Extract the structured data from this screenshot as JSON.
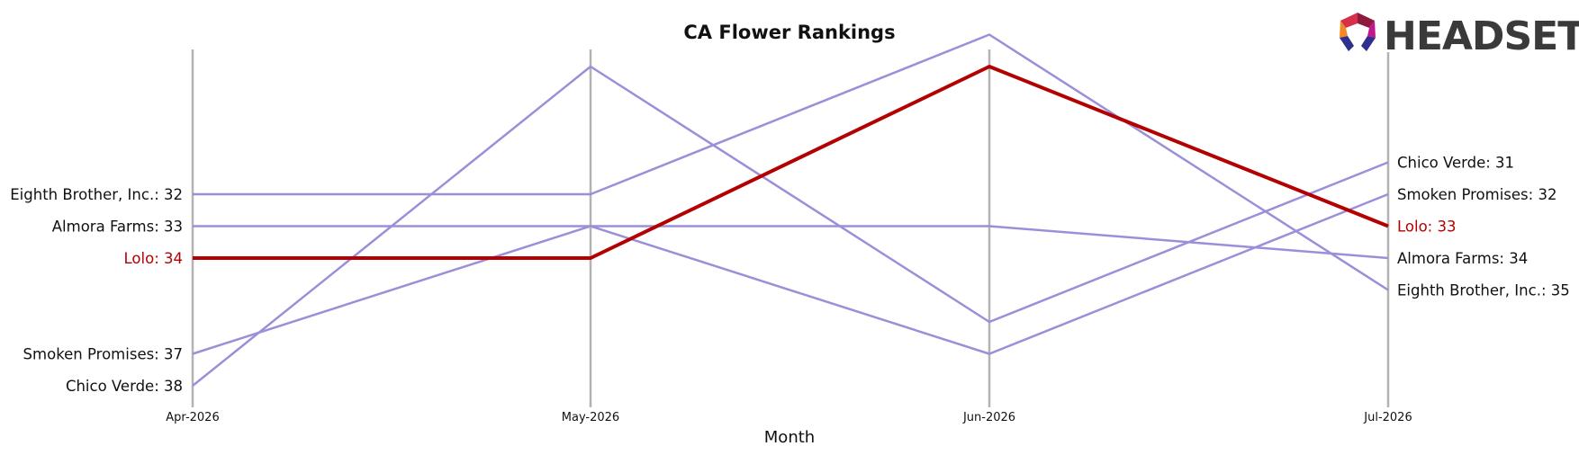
{
  "brand": {
    "name": "HEADSET"
  },
  "chart_data": {
    "type": "line",
    "title": "CA Flower Rankings",
    "xlabel": "Month",
    "ylabel": "",
    "categories": [
      "Apr-2026",
      "May-2026",
      "Jun-2026",
      "Jul-2026"
    ],
    "y_inverted": true,
    "ylim": [
      28,
      39
    ],
    "highlight": "Lolo",
    "colors": {
      "highlight": "#b30000",
      "other": "#9b8fd9",
      "axis": "#b3b3b3"
    },
    "series": [
      {
        "name": "Eighth Brother, Inc.",
        "values": [
          32,
          32,
          27,
          35
        ]
      },
      {
        "name": "Almora Farms",
        "values": [
          33,
          33,
          33,
          34
        ]
      },
      {
        "name": "Lolo",
        "values": [
          34,
          34,
          28,
          33
        ]
      },
      {
        "name": "Smoken Promises",
        "values": [
          37,
          33,
          37,
          32
        ]
      },
      {
        "name": "Chico Verde",
        "values": [
          38,
          28,
          36,
          31
        ]
      }
    ],
    "start_labels": [
      {
        "series": "Eighth Brother, Inc.",
        "text": "Eighth Brother, Inc.: 32"
      },
      {
        "series": "Almora Farms",
        "text": "Almora Farms: 33"
      },
      {
        "series": "Lolo",
        "text": "Lolo: 34"
      },
      {
        "series": "Smoken Promises",
        "text": "Smoken Promises: 37"
      },
      {
        "series": "Chico Verde",
        "text": "Chico Verde: 38"
      }
    ],
    "end_labels": [
      {
        "series": "Chico Verde",
        "text": "Chico Verde: 31"
      },
      {
        "series": "Smoken Promises",
        "text": "Smoken Promises: 32"
      },
      {
        "series": "Lolo",
        "text": "Lolo: 33"
      },
      {
        "series": "Almora Farms",
        "text": "Almora Farms: 34"
      },
      {
        "series": "Eighth Brother, Inc.",
        "text": "Eighth Brother, Inc.: 35"
      }
    ]
  }
}
